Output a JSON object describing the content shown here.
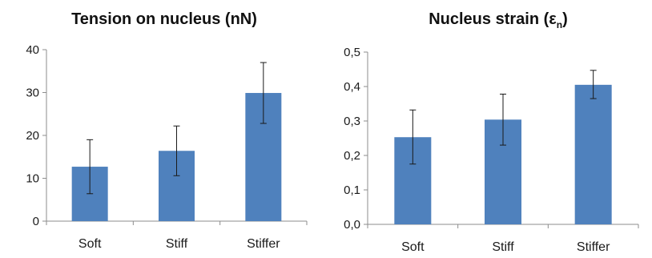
{
  "bar_color": "#4f81bd",
  "axis_color": "#8c8c8c",
  "chart_data": [
    {
      "type": "bar",
      "title": "Tension on nucleus (nN)",
      "title_sub": "",
      "title_end": "",
      "categories": [
        "Soft",
        "Stiff",
        "Stiffer"
      ],
      "values": [
        12.7,
        16.4,
        29.9
      ],
      "error_low": [
        6.4,
        10.6,
        22.8
      ],
      "error_high": [
        19.0,
        22.2,
        37.0
      ],
      "ylim": [
        0,
        40
      ],
      "yticks": [
        0,
        10,
        20,
        30,
        40
      ],
      "ytick_labels": [
        "0",
        "10",
        "20",
        "30",
        "40"
      ],
      "xlabel": "",
      "ylabel": "",
      "grid": false,
      "legend": false
    },
    {
      "type": "bar",
      "title": "Nucleus strain (ε",
      "title_sub": "n",
      "title_end": ")",
      "categories": [
        "Soft",
        "Stiff",
        "Stiffer"
      ],
      "values": [
        0.253,
        0.304,
        0.405
      ],
      "error_low": [
        0.175,
        0.23,
        0.365
      ],
      "error_high": [
        0.332,
        0.378,
        0.447
      ],
      "ylim": [
        0,
        0.5
      ],
      "yticks": [
        0,
        0.1,
        0.2,
        0.3,
        0.4,
        0.5
      ],
      "ytick_labels": [
        "0,0",
        "0,1",
        "0,2",
        "0,3",
        "0,4",
        "0,5"
      ],
      "xlabel": "",
      "ylabel": "",
      "grid": false,
      "legend": false
    }
  ]
}
